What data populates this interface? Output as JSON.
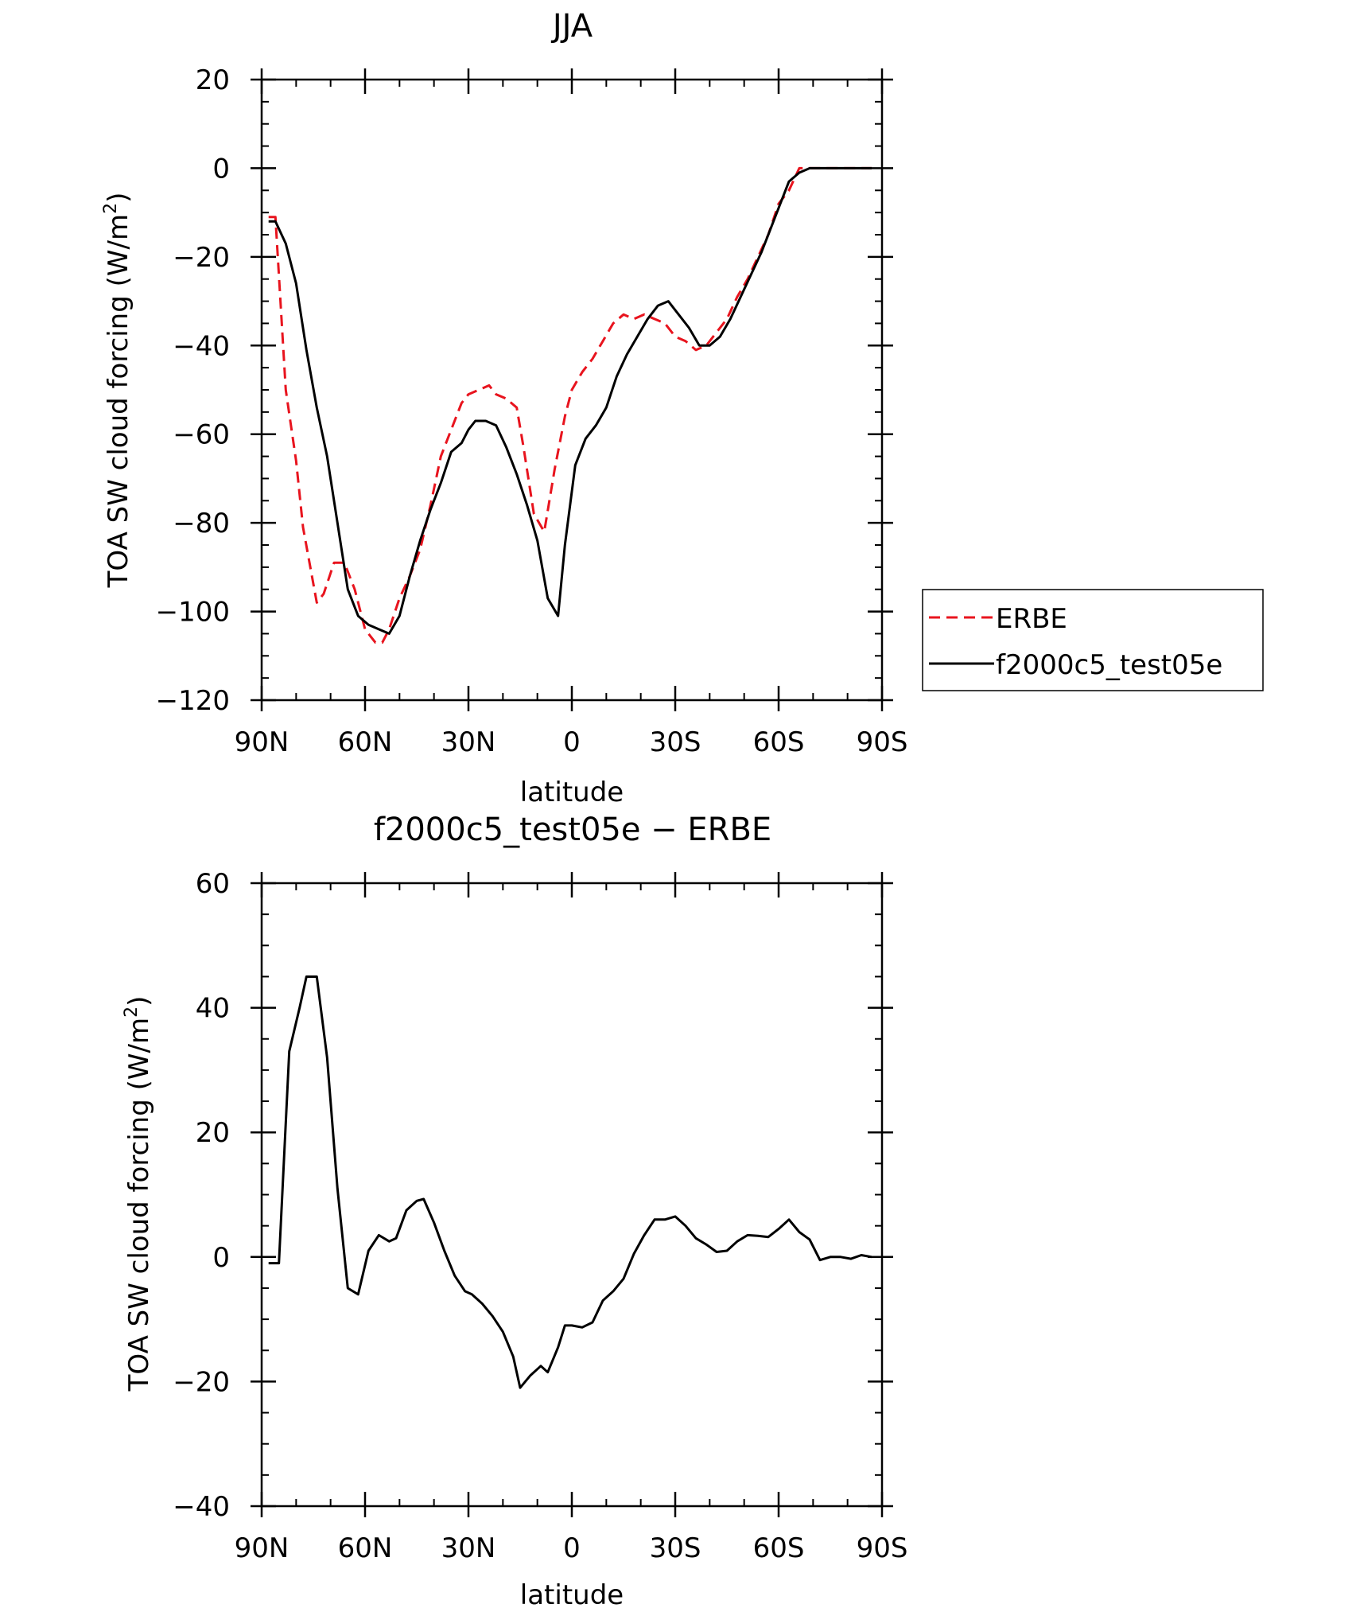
{
  "chart_data": [
    {
      "type": "line",
      "title": "JJA",
      "xlabel": "latitude",
      "ylabel": "TOA SW cloud forcing (W/m",
      "ylabel_sup": "2",
      "ylabel_close": ")",
      "xlim": [
        -90,
        90
      ],
      "ylim": [
        -120,
        20
      ],
      "xticks": [
        -90,
        -60,
        -30,
        0,
        30,
        60,
        90
      ],
      "xtick_labels": [
        "90N",
        "60N",
        "30N",
        "0",
        "30S",
        "60S",
        "90S"
      ],
      "yticks": [
        20,
        0,
        -20,
        -40,
        -60,
        -80,
        -100,
        -120
      ],
      "ytick_labels": [
        "20",
        "0",
        "−20",
        "−40",
        "−60",
        "−80",
        "−100",
        "−120"
      ],
      "legend_position": "right",
      "series": [
        {
          "name": "ERBE",
          "color": "#e8141e",
          "dash": "dashed",
          "x": [
            -88,
            -86,
            -83,
            -80,
            -78,
            -74,
            -72,
            -69,
            -66,
            -63,
            -60,
            -57,
            -55,
            -53,
            -50,
            -47,
            -44,
            -41,
            -38,
            -35,
            -32,
            -30,
            -27,
            -24,
            -22,
            -19,
            -16,
            -14,
            -11,
            -8,
            -5,
            -2,
            0,
            3,
            6,
            9,
            12,
            15,
            18,
            21,
            24,
            27,
            30,
            33,
            36,
            39,
            42,
            45,
            48,
            51,
            54,
            57,
            60,
            63,
            66,
            69,
            72,
            75,
            78,
            81,
            84,
            87
          ],
          "values": [
            -11,
            -11,
            -50,
            -66,
            -81,
            -98,
            -96,
            -89,
            -89,
            -95,
            -104,
            -107,
            -107,
            -104,
            -97,
            -92,
            -86,
            -76,
            -65,
            -59,
            -53,
            -51,
            -50,
            -49,
            -51,
            -52,
            -54,
            -63,
            -78,
            -82,
            -68,
            -56,
            -50,
            -46,
            -43,
            -39,
            -35,
            -33,
            -34,
            -33,
            -34,
            -35,
            -38,
            -39,
            -41,
            -40,
            -37,
            -34,
            -29,
            -25,
            -20,
            -15,
            -8,
            -5,
            0,
            0,
            0,
            0,
            0,
            0,
            0,
            0
          ]
        },
        {
          "name": "f2000c5_test05e",
          "color": "#000000",
          "dash": "solid",
          "x": [
            -88,
            -86,
            -83,
            -80,
            -77,
            -74,
            -71,
            -68,
            -65,
            -62,
            -59,
            -56,
            -53,
            -50,
            -47,
            -44,
            -41,
            -38,
            -35,
            -32,
            -30,
            -28,
            -25,
            -22,
            -19,
            -16,
            -13,
            -10,
            -7,
            -4,
            -2,
            1,
            4,
            7,
            10,
            13,
            16,
            19,
            22,
            25,
            28,
            31,
            34,
            37,
            40,
            43,
            46,
            49,
            52,
            55,
            58,
            61,
            63,
            66,
            69,
            72,
            75,
            78,
            81,
            84,
            87
          ],
          "values": [
            -12,
            -12,
            -17,
            -26,
            -41,
            -54,
            -65,
            -80,
            -95,
            -101,
            -103,
            -104,
            -105,
            -101,
            -92,
            -84,
            -77,
            -71,
            -64,
            -62,
            -59,
            -57,
            -57,
            -58,
            -63,
            -69,
            -76,
            -84,
            -97,
            -101,
            -85,
            -67,
            -61,
            -58,
            -54,
            -47,
            -42,
            -38,
            -34,
            -31,
            -30,
            -33,
            -36,
            -40,
            -40,
            -38,
            -34,
            -29,
            -24,
            -19,
            -13,
            -7,
            -3,
            -1,
            0,
            0,
            0,
            0,
            0,
            0,
            0
          ]
        }
      ]
    },
    {
      "type": "line",
      "title": "f2000c5_test05e − ERBE",
      "xlabel": "latitude",
      "ylabel": "TOA SW cloud forcing (W/m",
      "ylabel_sup": "2",
      "ylabel_close": ")",
      "xlim": [
        -90,
        90
      ],
      "ylim": [
        -40,
        60
      ],
      "xticks": [
        -90,
        -60,
        -30,
        0,
        30,
        60,
        90
      ],
      "xtick_labels": [
        "90N",
        "60N",
        "30N",
        "0",
        "30S",
        "60S",
        "90S"
      ],
      "yticks": [
        60,
        40,
        20,
        0,
        -20,
        -40
      ],
      "ytick_labels": [
        "60",
        "40",
        "20",
        "0",
        "−20",
        "−40"
      ],
      "series": [
        {
          "name": "f2000c5_test05e − ERBE",
          "color": "#000000",
          "dash": "solid",
          "x": [
            -88,
            -85,
            -82,
            -79,
            -77,
            -74,
            -71,
            -68,
            -65,
            -62,
            -59,
            -56,
            -53,
            -51,
            -48,
            -45,
            -43,
            -40,
            -37,
            -34,
            -31,
            -29,
            -26,
            -23,
            -20,
            -17,
            -15,
            -12,
            -9,
            -7,
            -4,
            -2,
            0,
            3,
            6,
            9,
            12,
            15,
            18,
            21,
            24,
            27,
            30,
            33,
            36,
            39,
            42,
            45,
            48,
            51,
            54,
            57,
            60,
            63,
            66,
            69,
            72,
            75,
            78,
            81,
            84,
            87
          ],
          "values": [
            -1,
            -1,
            33,
            40,
            45,
            45,
            32,
            11,
            -5,
            -6,
            1,
            3.5,
            2.5,
            3,
            7.5,
            9,
            9.3,
            5.5,
            1,
            -3,
            -5.5,
            -6,
            -7.5,
            -9.5,
            -12,
            -16,
            -21,
            -19,
            -17.5,
            -18.5,
            -14.5,
            -11,
            -11,
            -11.3,
            -10.5,
            -7,
            -5.5,
            -3.5,
            0.5,
            3.5,
            6,
            6,
            6.5,
            5,
            3,
            2,
            0.8,
            1,
            2.5,
            3.5,
            3.4,
            3.2,
            4.5,
            6,
            4,
            2.8,
            -0.5,
            0,
            0,
            -0.3,
            0.3,
            0
          ]
        }
      ]
    }
  ]
}
